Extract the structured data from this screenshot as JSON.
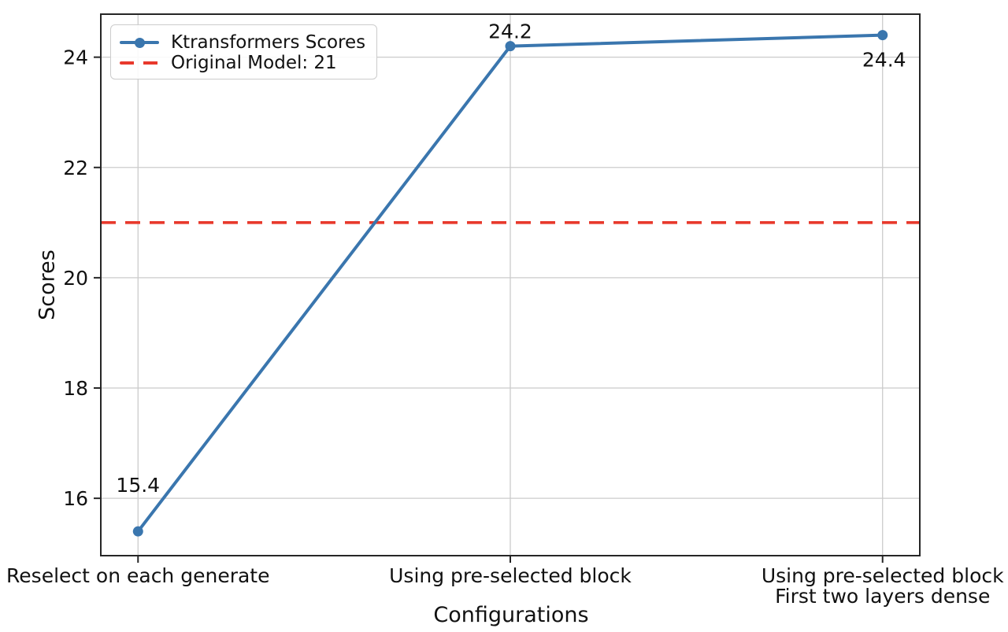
{
  "chart_data": {
    "type": "line",
    "title": "",
    "xlabel": "Configurations",
    "ylabel": "Scores",
    "categories": [
      "Reselect on each generate",
      "Using pre-selected block",
      "Using pre-selected block\nFirst two layers dense"
    ],
    "series": [
      {
        "name": "Ktransformers Scores",
        "values": [
          15.4,
          24.2,
          24.4
        ],
        "data_labels": [
          "15.4",
          "24.2",
          "24.4"
        ],
        "color": "#3a76ae",
        "marker": "circle",
        "line_style": "solid"
      }
    ],
    "reference_line": {
      "label": "Original Model: 21",
      "value": 21,
      "color": "#e8392c",
      "line_style": "dashed"
    },
    "yticks": [
      16,
      18,
      20,
      22,
      24
    ],
    "ylim": [
      14.96,
      24.78
    ],
    "grid": true,
    "legend_position": "upper left",
    "colors": {
      "grid": "#cbcbcb",
      "frame": "#262626",
      "text": "#111111",
      "background": "#ffffff"
    }
  }
}
